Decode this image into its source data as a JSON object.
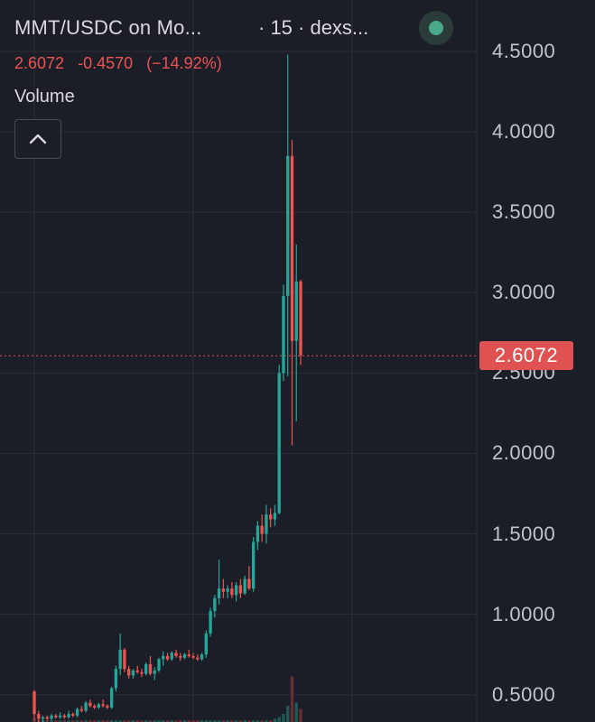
{
  "header": {
    "title": "MMT/USDC on Mo...",
    "interval": "· 15 · dexs..."
  },
  "quote": {
    "last": "2.6072",
    "change": "-0.4570",
    "change_pct": "(−14.92%)"
  },
  "volume_label": "Volume",
  "colors": {
    "up": "#26a69a",
    "down": "#ef5350",
    "background": "#1c1e27"
  },
  "icons": {
    "collapse": "chevron-up-icon",
    "status": "status-dot-icon"
  },
  "chart_data": {
    "type": "candlestick",
    "title": "",
    "xlabel": "",
    "ylabel": "",
    "ylim": [
      0.33,
      4.82
    ],
    "y_ticks": [
      "4.5000",
      "4.0000",
      "3.5000",
      "3.0000",
      "2.5000",
      "2.0000",
      "1.5000",
      "1.0000",
      "0.5000"
    ],
    "y_tick_values": [
      4.5,
      4.0,
      3.5,
      3.0,
      2.5,
      2.0,
      1.5,
      1.0,
      0.5
    ],
    "last_price": 2.6072,
    "last_price_label": "2.6072",
    "grid": true,
    "candles": [
      [
        0.52,
        0.53,
        0.34,
        0.38
      ],
      [
        0.38,
        0.4,
        0.33,
        0.35
      ],
      [
        0.35,
        0.37,
        0.33,
        0.36
      ],
      [
        0.36,
        0.37,
        0.34,
        0.35
      ],
      [
        0.35,
        0.38,
        0.34,
        0.37
      ],
      [
        0.37,
        0.38,
        0.35,
        0.36
      ],
      [
        0.36,
        0.39,
        0.35,
        0.37
      ],
      [
        0.37,
        0.38,
        0.35,
        0.36
      ],
      [
        0.36,
        0.4,
        0.35,
        0.38
      ],
      [
        0.38,
        0.39,
        0.36,
        0.37
      ],
      [
        0.37,
        0.42,
        0.36,
        0.41
      ],
      [
        0.41,
        0.43,
        0.39,
        0.4
      ],
      [
        0.4,
        0.46,
        0.39,
        0.45
      ],
      [
        0.45,
        0.47,
        0.42,
        0.43
      ],
      [
        0.43,
        0.44,
        0.41,
        0.42
      ],
      [
        0.42,
        0.45,
        0.41,
        0.44
      ],
      [
        0.44,
        0.47,
        0.42,
        0.43
      ],
      [
        0.43,
        0.44,
        0.41,
        0.42
      ],
      [
        0.42,
        0.55,
        0.41,
        0.54
      ],
      [
        0.54,
        0.68,
        0.52,
        0.66
      ],
      [
        0.66,
        0.88,
        0.62,
        0.78
      ],
      [
        0.78,
        0.79,
        0.64,
        0.66
      ],
      [
        0.66,
        0.68,
        0.6,
        0.62
      ],
      [
        0.62,
        0.66,
        0.6,
        0.65
      ],
      [
        0.65,
        0.68,
        0.63,
        0.64
      ],
      [
        0.64,
        0.66,
        0.61,
        0.63
      ],
      [
        0.63,
        0.7,
        0.62,
        0.69
      ],
      [
        0.69,
        0.74,
        0.62,
        0.63
      ],
      [
        0.63,
        0.67,
        0.59,
        0.65
      ],
      [
        0.65,
        0.73,
        0.64,
        0.72
      ],
      [
        0.72,
        0.77,
        0.68,
        0.74
      ],
      [
        0.74,
        0.76,
        0.71,
        0.72
      ],
      [
        0.72,
        0.77,
        0.71,
        0.76
      ],
      [
        0.76,
        0.78,
        0.73,
        0.74
      ],
      [
        0.74,
        0.76,
        0.71,
        0.73
      ],
      [
        0.73,
        0.76,
        0.72,
        0.75
      ],
      [
        0.75,
        0.78,
        0.73,
        0.74
      ],
      [
        0.74,
        0.76,
        0.72,
        0.73
      ],
      [
        0.73,
        0.75,
        0.71,
        0.72
      ],
      [
        0.72,
        0.76,
        0.71,
        0.75
      ],
      [
        0.75,
        0.9,
        0.73,
        0.88
      ],
      [
        0.88,
        1.04,
        0.86,
        1.02
      ],
      [
        1.02,
        1.12,
        0.98,
        1.1
      ],
      [
        1.1,
        1.34,
        1.06,
        1.16
      ],
      [
        1.16,
        1.22,
        1.1,
        1.14
      ],
      [
        1.14,
        1.18,
        1.1,
        1.16
      ],
      [
        1.16,
        1.2,
        1.1,
        1.12
      ],
      [
        1.12,
        1.2,
        1.08,
        1.18
      ],
      [
        1.18,
        1.22,
        1.1,
        1.13
      ],
      [
        1.13,
        1.24,
        1.12,
        1.22
      ],
      [
        1.22,
        1.3,
        1.15,
        1.16
      ],
      [
        1.16,
        1.48,
        1.14,
        1.45
      ],
      [
        1.45,
        1.58,
        1.4,
        1.55
      ],
      [
        1.55,
        1.62,
        1.45,
        1.5
      ],
      [
        1.5,
        1.68,
        1.44,
        1.62
      ],
      [
        1.62,
        1.66,
        1.54,
        1.59
      ],
      [
        1.59,
        1.68,
        1.55,
        1.63
      ],
      [
        1.63,
        2.55,
        1.62,
        2.5
      ],
      [
        2.5,
        3.05,
        2.45,
        2.98
      ],
      [
        2.98,
        4.48,
        2.48,
        3.85
      ],
      [
        3.85,
        3.95,
        2.05,
        2.7
      ],
      [
        2.7,
        3.3,
        2.2,
        3.07
      ],
      [
        3.07,
        3.08,
        2.55,
        2.61
      ]
    ],
    "volume": [
      0.02,
      0.01,
      0.01,
      0.01,
      0.01,
      0.01,
      0.01,
      0.01,
      0.01,
      0.01,
      0.01,
      0.01,
      0.01,
      0.01,
      0.01,
      0.01,
      0.01,
      0.01,
      0.01,
      0.01,
      0.01,
      0.01,
      0.01,
      0.01,
      0.01,
      0.01,
      0.01,
      0.01,
      0.01,
      0.01,
      0.01,
      0.01,
      0.01,
      0.01,
      0.01,
      0.01,
      0.01,
      0.01,
      0.01,
      0.01,
      0.01,
      0.01,
      0.01,
      0.01,
      0.01,
      0.01,
      0.01,
      0.01,
      0.01,
      0.01,
      0.01,
      0.01,
      0.01,
      0.01,
      0.01,
      0.01,
      0.02,
      0.03,
      0.05,
      0.1,
      0.28,
      0.12,
      0.08
    ]
  }
}
